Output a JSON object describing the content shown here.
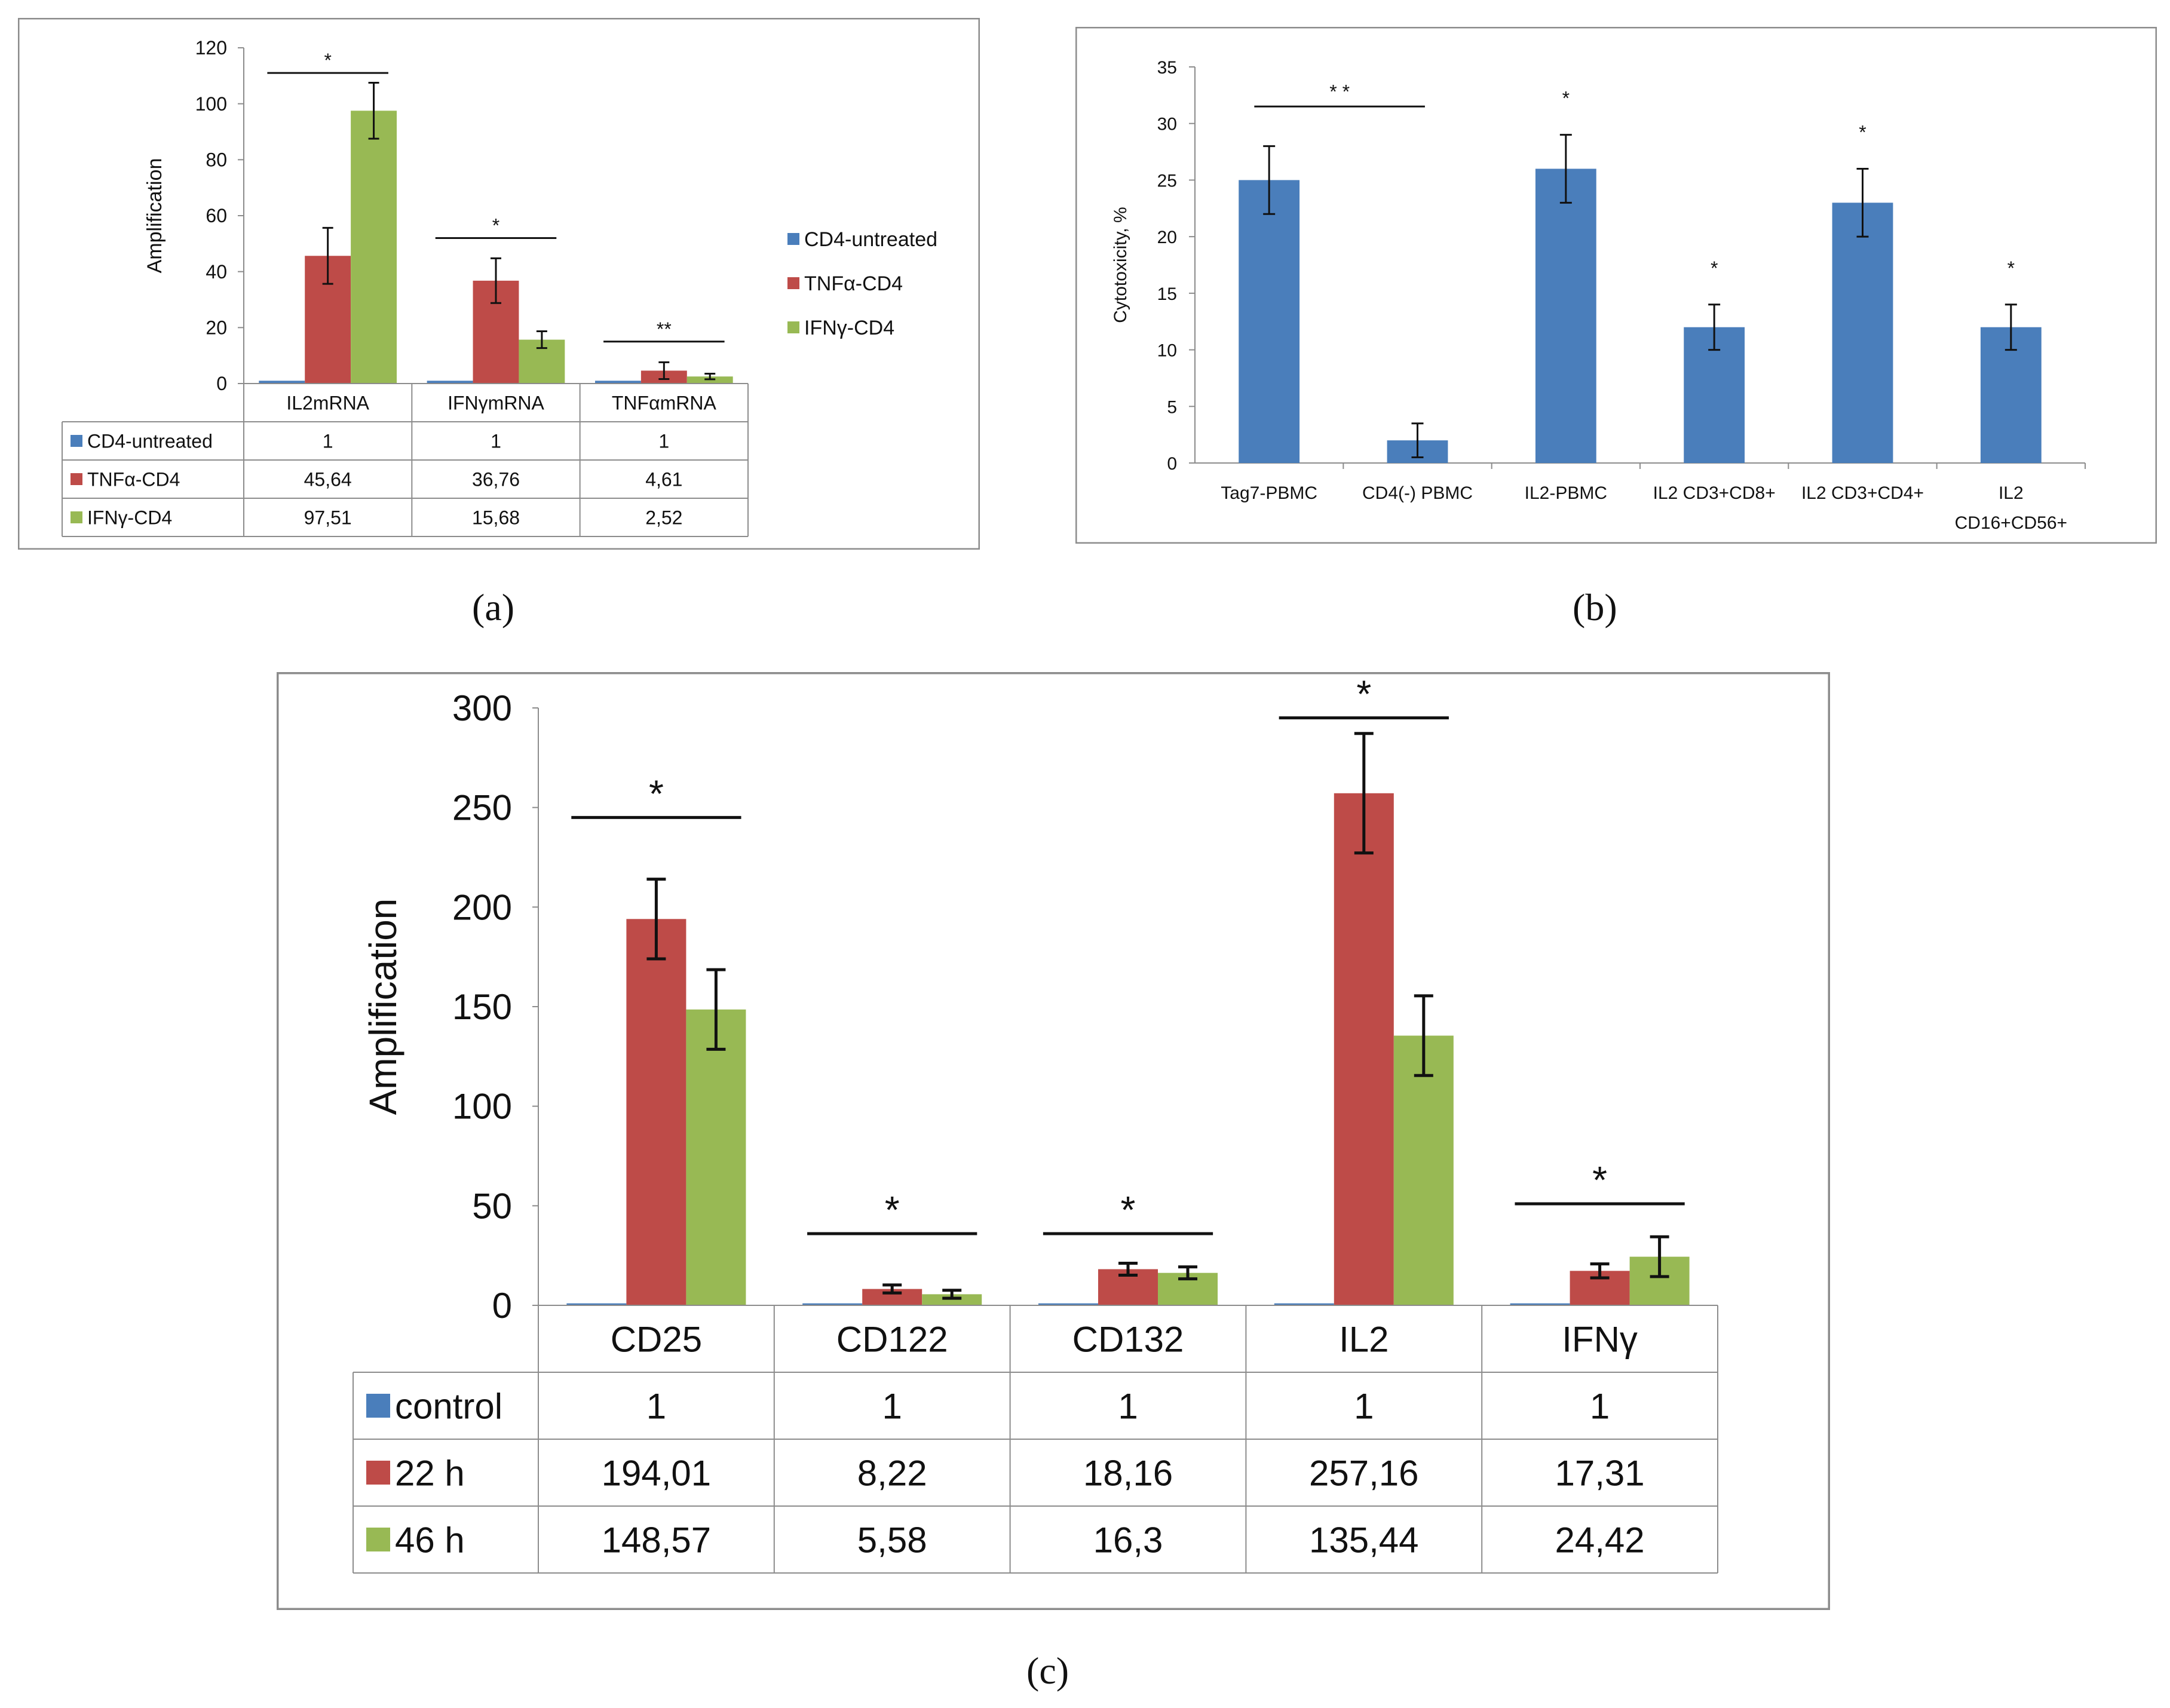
{
  "chart_data": [
    {
      "panel": "(a)",
      "type": "bar",
      "ylabel": "Amplification",
      "ylim": [
        0,
        120
      ],
      "yticks": [
        0,
        20,
        40,
        60,
        80,
        100,
        120
      ],
      "categories": [
        "IL2mRNA",
        "IFNγmRNA",
        "TNFαmRNA"
      ],
      "series": [
        {
          "name": "CD4-untreated",
          "color": "#4a7ebb",
          "values": [
            1,
            1,
            1
          ],
          "labels": [
            "1",
            "1",
            "1"
          ],
          "errors": [
            0,
            0,
            0
          ]
        },
        {
          "name": "TNFα-CD4",
          "color": "#be4b48",
          "values": [
            45.64,
            36.76,
            4.61
          ],
          "labels": [
            "45,64",
            "36,76",
            "4,61"
          ],
          "errors": [
            10,
            8,
            3
          ]
        },
        {
          "name": "IFNγ-CD4",
          "color": "#98b954",
          "values": [
            97.51,
            15.68,
            2.52
          ],
          "labels": [
            "97,51",
            "15,68",
            "2,52"
          ],
          "errors": [
            10,
            3,
            1
          ]
        }
      ],
      "significance": [
        {
          "category": 0,
          "label": "*",
          "y": 111
        },
        {
          "category": 1,
          "label": "*",
          "y": 52
        },
        {
          "category": 2,
          "label": "**",
          "y": 15
        }
      ]
    },
    {
      "panel": "(b)",
      "type": "bar",
      "ylabel": "Cytotoxicity, %",
      "ylim": [
        0,
        35
      ],
      "yticks": [
        0,
        5,
        10,
        15,
        20,
        25,
        30,
        35
      ],
      "categories": [
        "Tag7-PBMC",
        "CD4(-) PBMC",
        "IL2-PBMC",
        "IL2 CD3+CD8+",
        "IL2 CD3+CD4+",
        "IL2 CD16+CD56+"
      ],
      "category_lines": [
        [
          "Tag7-PBMC"
        ],
        [
          "CD4(-) PBMC"
        ],
        [
          "IL2-PBMC"
        ],
        [
          "IL2 CD3+CD8+"
        ],
        [
          "IL2 CD3+CD4+"
        ],
        [
          "IL2",
          "CD16+CD56+"
        ]
      ],
      "series": [
        {
          "name": "Cytotoxicity",
          "color": "#4a7ebb",
          "values": [
            25,
            2,
            26,
            12,
            23,
            12
          ],
          "errors": [
            3,
            1.5,
            3,
            2,
            3,
            2
          ]
        }
      ],
      "significance": [
        {
          "category": 2,
          "label": "*"
        },
        {
          "category": 3,
          "label": "*"
        },
        {
          "category": 4,
          "label": "*"
        },
        {
          "category": 5,
          "label": "*"
        }
      ],
      "bracket": {
        "from": 0,
        "to": 1,
        "label": "* *",
        "y": 31.5
      }
    },
    {
      "panel": "(c)",
      "type": "bar",
      "ylabel": "Amplification",
      "ylim": [
        0,
        300
      ],
      "yticks": [
        0,
        50,
        100,
        150,
        200,
        250,
        300
      ],
      "categories": [
        "CD25",
        "CD122",
        "CD132",
        "IL2",
        "IFNγ"
      ],
      "series": [
        {
          "name": "control",
          "color": "#4a7ebb",
          "values": [
            1,
            1,
            1,
            1,
            1
          ],
          "labels": [
            "1",
            "1",
            "1",
            "1",
            "1"
          ],
          "errors": [
            0,
            0,
            0,
            0,
            0
          ]
        },
        {
          "name": "22 h",
          "color": "#be4b48",
          "values": [
            194.01,
            8.22,
            18.16,
            257.16,
            17.31
          ],
          "labels": [
            "194,01",
            "8,22",
            "18,16",
            "257,16",
            "17,31"
          ],
          "errors": [
            20,
            2,
            3,
            30,
            3.5
          ]
        },
        {
          "name": "46 h",
          "color": "#98b954",
          "values": [
            148.57,
            5.58,
            16.3,
            135.44,
            24.42
          ],
          "labels": [
            "148,57",
            "5,58",
            "16,3",
            "135,44",
            "24,42"
          ],
          "errors": [
            20,
            2,
            3,
            20,
            10
          ]
        }
      ],
      "significance": [
        {
          "category": 0,
          "label": "*",
          "y": 245
        },
        {
          "category": 1,
          "label": "*",
          "y": 36
        },
        {
          "category": 2,
          "label": "*",
          "y": 36
        },
        {
          "category": 3,
          "label": "*",
          "y": 295
        },
        {
          "category": 4,
          "label": "*",
          "y": 51
        }
      ]
    }
  ],
  "captions": {
    "a": "(a)",
    "b": "(b)",
    "c": "(c)"
  }
}
